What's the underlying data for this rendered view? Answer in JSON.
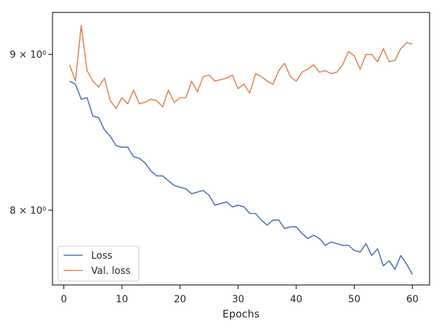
{
  "chart_data": {
    "type": "line",
    "title": "",
    "xlabel": "Epochs",
    "ylabel": "",
    "xlim": [
      -1.95,
      62.95
    ],
    "ylim": [
      7.56,
      9.29
    ],
    "yscale": "log",
    "grid": false,
    "legend_position": "lower-left",
    "x_ticks": [
      0,
      10,
      20,
      30,
      40,
      50,
      60
    ],
    "x_tick_labels": [
      "0",
      "10",
      "20",
      "30",
      "40",
      "50",
      "60"
    ],
    "y_ticks": [
      8,
      9
    ],
    "y_tick_labels": [
      "8 × 10⁰",
      "9 × 10⁰"
    ],
    "x": [
      1,
      2,
      3,
      4,
      5,
      6,
      7,
      8,
      9,
      10,
      11,
      12,
      13,
      14,
      15,
      16,
      17,
      18,
      19,
      20,
      21,
      22,
      23,
      24,
      25,
      26,
      27,
      28,
      29,
      30,
      31,
      32,
      33,
      34,
      35,
      36,
      37,
      38,
      39,
      40,
      41,
      42,
      43,
      44,
      45,
      46,
      47,
      48,
      49,
      50,
      51,
      52,
      53,
      54,
      55,
      56,
      57,
      58,
      59,
      60
    ],
    "series": [
      {
        "name": "Loss",
        "color": "#4c72b0",
        "values": [
          8.82,
          8.8,
          8.7,
          8.71,
          8.59,
          8.58,
          8.5,
          8.46,
          8.4,
          8.39,
          8.39,
          8.33,
          8.32,
          8.29,
          8.24,
          8.21,
          8.21,
          8.18,
          8.15,
          8.14,
          8.13,
          8.1,
          8.11,
          8.12,
          8.09,
          8.03,
          8.04,
          8.05,
          8.02,
          8.03,
          8.02,
          7.98,
          7.98,
          7.94,
          7.91,
          7.94,
          7.94,
          7.89,
          7.9,
          7.9,
          7.86,
          7.83,
          7.85,
          7.83,
          7.79,
          7.81,
          7.8,
          7.79,
          7.79,
          7.76,
          7.75,
          7.8,
          7.73,
          7.77,
          7.67,
          7.7,
          7.65,
          7.73,
          7.68,
          7.62
        ]
      },
      {
        "name": "Val. loss",
        "color": "#dd8452",
        "values": [
          8.93,
          8.82,
          9.2,
          8.89,
          8.82,
          8.78,
          8.84,
          8.69,
          8.64,
          8.71,
          8.67,
          8.76,
          8.67,
          8.68,
          8.7,
          8.69,
          8.65,
          8.76,
          8.68,
          8.71,
          8.71,
          8.82,
          8.75,
          8.85,
          8.86,
          8.82,
          8.83,
          8.84,
          8.86,
          8.77,
          8.8,
          8.74,
          8.87,
          8.85,
          8.82,
          8.8,
          8.89,
          8.94,
          8.85,
          8.82,
          8.88,
          8.9,
          8.93,
          8.88,
          8.89,
          8.87,
          8.88,
          8.93,
          9.02,
          8.99,
          8.9,
          9.0,
          9.0,
          8.95,
          9.04,
          8.95,
          8.96,
          9.04,
          9.08,
          9.07
        ]
      }
    ]
  }
}
